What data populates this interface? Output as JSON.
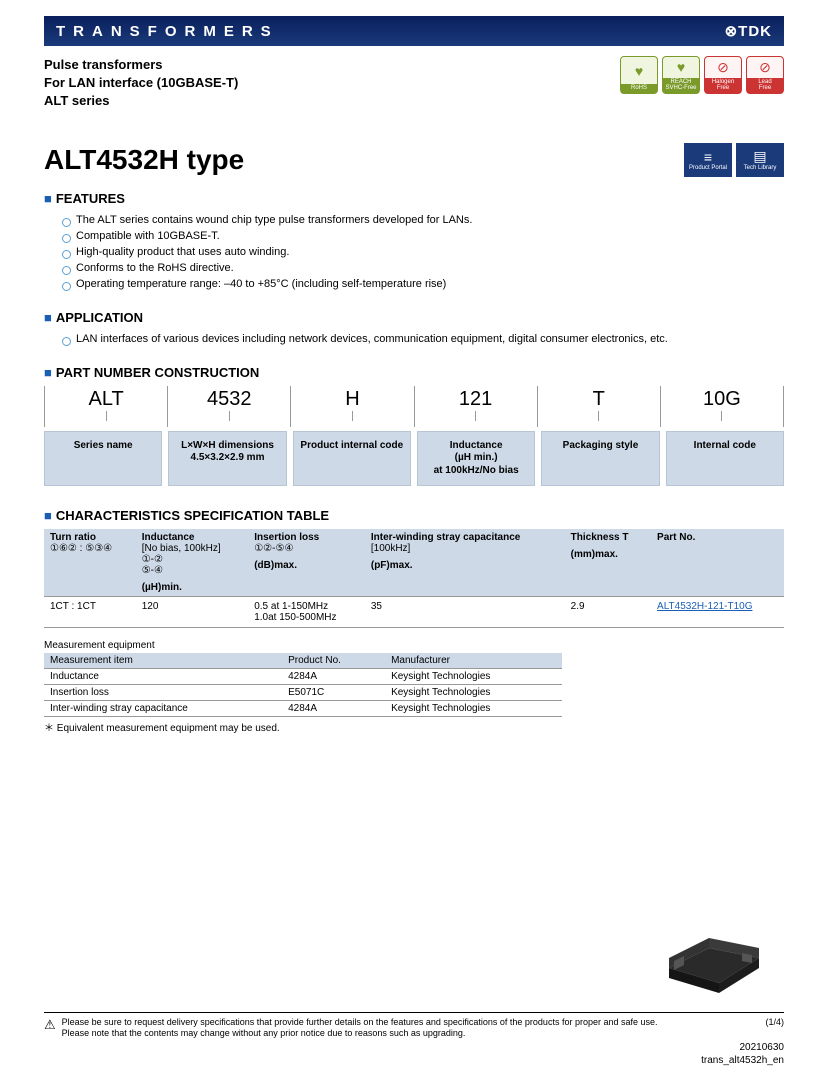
{
  "banner": {
    "title": "TRANSFORMERS",
    "brand": "⊗TDK"
  },
  "sub_header": {
    "line1": "Pulse transformers",
    "line2": "For LAN interface (10GBASE-T)",
    "line3": "ALT series"
  },
  "compliance_badges": [
    {
      "icon": "♥",
      "label": "RoHS",
      "red": false
    },
    {
      "icon": "♥",
      "label": "REACH SVHC-Free",
      "red": false
    },
    {
      "icon": "⊘",
      "label": "Halogen Free",
      "red": true
    },
    {
      "icon": "⊘",
      "label": "Lead Free",
      "red": true
    }
  ],
  "main_title": "ALT4532H type",
  "portal_badges": [
    {
      "icon": "≡",
      "label": "Product Portal"
    },
    {
      "icon": "▤",
      "label": "Tech Library"
    }
  ],
  "features": {
    "heading": "FEATURES",
    "items": [
      "The ALT series contains wound chip type pulse transformers developed for LANs.",
      "Compatible with 10GBASE-T.",
      "High-quality product that uses auto winding.",
      "Conforms to the RoHS directive.",
      "Operating temperature range: –40 to +85°C (including self-temperature rise)"
    ]
  },
  "application": {
    "heading": "APPLICATION",
    "items": [
      "LAN interfaces of various devices including network devices, communication equipment, digital consumer electronics, etc."
    ]
  },
  "pnc": {
    "heading": "PART NUMBER CONSTRUCTION",
    "segments": [
      {
        "code": "ALT",
        "desc": "Series name"
      },
      {
        "code": "4532",
        "desc": "L×W×H dimensions\n4.5×3.2×2.9 mm"
      },
      {
        "code": "H",
        "desc": "Product internal code"
      },
      {
        "code": "121",
        "desc": "Inductance\n(µH min.)\nat 100kHz/No bias"
      },
      {
        "code": "T",
        "desc": "Packaging style"
      },
      {
        "code": "10G",
        "desc": "Internal code"
      }
    ]
  },
  "spec": {
    "heading": "CHARACTERISTICS SPECIFICATION TABLE",
    "header_bg": "#cdd9e7",
    "columns": [
      {
        "h1": "Turn ratio",
        "h2": "①⑥② : ⑤③④",
        "h3": ""
      },
      {
        "h1": "Inductance",
        "h2": "[No bias, 100kHz]\n①-②\n⑤-④",
        "h3": "(µH)min."
      },
      {
        "h1": "Insertion loss",
        "h2": "①②-⑤④",
        "h3": "(dB)max."
      },
      {
        "h1": "Inter-winding stray capacitance",
        "h2": "[100kHz]",
        "h3": "(pF)max."
      },
      {
        "h1": "Thickness T",
        "h2": "",
        "h3": "(mm)max."
      },
      {
        "h1": "Part No.",
        "h2": "",
        "h3": ""
      }
    ],
    "row": {
      "turn_ratio": "1CT : 1CT",
      "inductance": "120",
      "insertion_loss": "0.5 at 1-150MHz\n1.0at 150-500MHz",
      "capacitance": "35",
      "thickness": "2.9",
      "part_no": "ALT4532H-121-T10G"
    }
  },
  "measurement": {
    "heading": "Measurement equipment",
    "columns": [
      "Measurement item",
      "Product No.",
      "Manufacturer"
    ],
    "rows": [
      [
        "Inductance",
        "4284A",
        "Keysight Technologies"
      ],
      [
        "Insertion loss",
        "E5071C",
        "Keysight Technologies"
      ],
      [
        "Inter-winding stray capacitance",
        "4284A",
        "Keysight Technologies"
      ]
    ],
    "note": "＊ Equivalent measurement equipment may be used."
  },
  "footer": {
    "warn_icon": "⚠",
    "text": "Please be sure to request delivery specifications that provide further details on the features and specifications of the products for proper and safe use.\nPlease note that the contents may change without any prior notice due to reasons such as upgrading.",
    "page": "(1/4)",
    "date": "20210630",
    "doc": "trans_alt4532h_en"
  }
}
